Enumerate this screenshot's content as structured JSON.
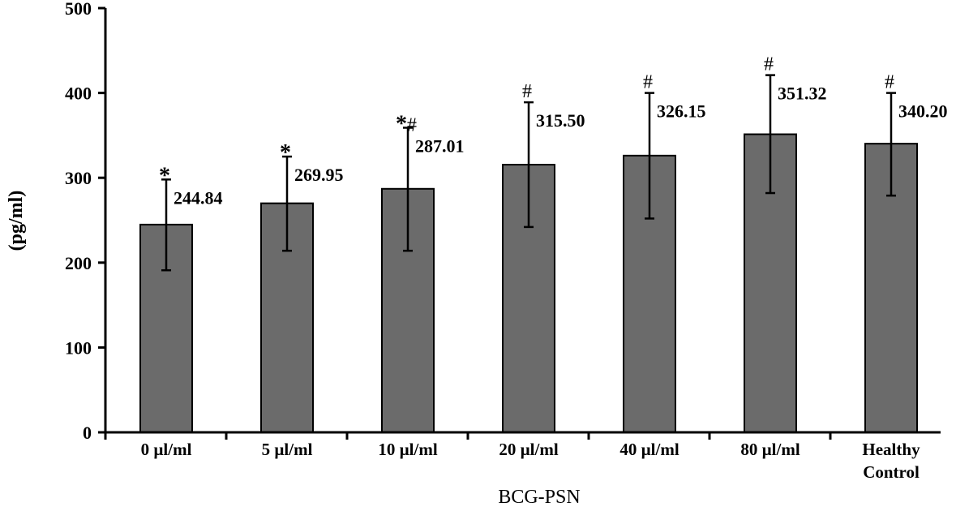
{
  "chart_data": {
    "type": "bar",
    "categories": [
      "0 µl/ml",
      "5 µl/ml",
      "10 µl/ml",
      "20 µl/ml",
      "40 µl/ml",
      "80 µl/ml",
      [
        "Healthy",
        "Control"
      ]
    ],
    "values": [
      244.84,
      269.95,
      287.01,
      315.5,
      326.15,
      351.32,
      340.2
    ],
    "value_labels": [
      "244.84",
      "269.95",
      "287.01",
      "315.50",
      "326.15",
      "351.32",
      "340.20"
    ],
    "error_upper": [
      298,
      325,
      359,
      389,
      400,
      421,
      400
    ],
    "error_lower": [
      191,
      214,
      214,
      242,
      252,
      282,
      279
    ],
    "significance": [
      "*",
      "*",
      "*#",
      "#",
      "#",
      "#",
      "#"
    ],
    "xlabel": "BCG-PSN",
    "ylabel": "(pg/ml)",
    "ylim": [
      0,
      500
    ],
    "yticks": [
      0,
      100,
      200,
      300,
      400,
      500
    ],
    "bar_color": "#6b6b6b",
    "grid": false,
    "legend": "none"
  }
}
